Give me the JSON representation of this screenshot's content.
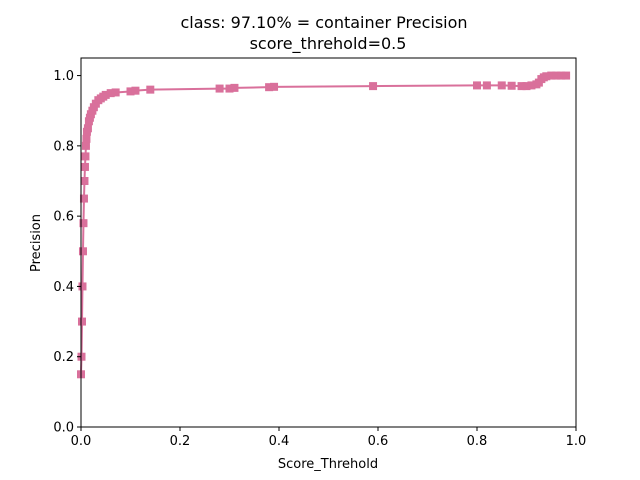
{
  "chart_data": {
    "type": "line",
    "title_line1": "class: 97.10% = container Precision",
    "title_line2": "score_threhold=0.5",
    "xlabel": "Score_Threhold",
    "ylabel": "Precision",
    "xlim": [
      0.0,
      1.0
    ],
    "ylim": [
      0.0,
      1.05
    ],
    "xticks": [
      "0.0",
      "0.2",
      "0.4",
      "0.6",
      "0.8",
      "1.0"
    ],
    "yticks": [
      "0.0",
      "0.2",
      "0.4",
      "0.6",
      "0.8",
      "1.0"
    ],
    "grid": false,
    "legend": "none",
    "marker": "square",
    "color": "#d9709b",
    "series": [
      {
        "x": [
          0.0,
          0.001,
          0.002,
          0.003,
          0.004,
          0.005,
          0.006,
          0.007,
          0.008,
          0.009,
          0.01,
          0.011,
          0.012,
          0.014,
          0.016,
          0.018,
          0.02,
          0.023,
          0.026,
          0.03,
          0.035,
          0.04,
          0.045,
          0.05,
          0.06,
          0.07,
          0.1,
          0.11,
          0.14,
          0.28,
          0.3,
          0.31,
          0.38,
          0.39,
          0.59,
          0.8,
          0.82,
          0.85,
          0.87,
          0.89,
          0.9,
          0.91,
          0.92,
          0.925,
          0.93,
          0.935,
          0.94,
          0.95,
          0.96,
          0.97,
          0.98
        ],
        "y": [
          0.15,
          0.2,
          0.3,
          0.4,
          0.5,
          0.58,
          0.65,
          0.7,
          0.74,
          0.77,
          0.8,
          0.82,
          0.84,
          0.85,
          0.87,
          0.88,
          0.89,
          0.9,
          0.91,
          0.92,
          0.93,
          0.935,
          0.94,
          0.945,
          0.95,
          0.952,
          0.955,
          0.957,
          0.96,
          0.963,
          0.963,
          0.965,
          0.967,
          0.968,
          0.97,
          0.972,
          0.972,
          0.972,
          0.971,
          0.97,
          0.97,
          0.972,
          0.975,
          0.98,
          0.99,
          0.995,
          0.998,
          1.0,
          1.0,
          1.0,
          1.0
        ]
      }
    ]
  }
}
